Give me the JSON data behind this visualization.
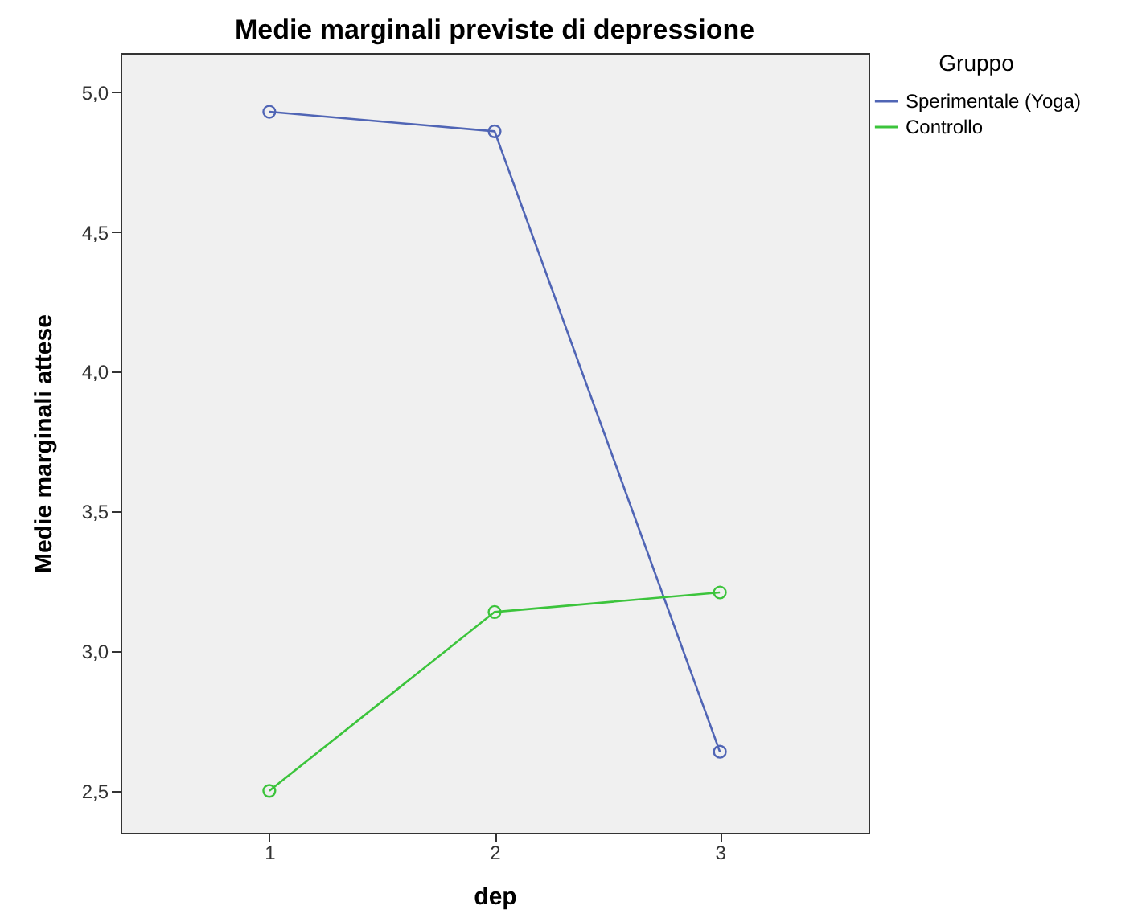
{
  "chart_data": {
    "type": "line",
    "title": "Medie marginali previste di depressione",
    "xlabel": "dep",
    "ylabel": "Medie marginali attese",
    "legend_title": "Gruppo",
    "categories": [
      "1",
      "2",
      "3"
    ],
    "series": [
      {
        "name": "Sperimentale (Yoga)",
        "color": "#5065b5",
        "values": [
          4.93,
          4.86,
          2.64
        ]
      },
      {
        "name": "Controllo",
        "color": "#3cc43c",
        "values": [
          2.5,
          3.14,
          3.21
        ]
      }
    ],
    "ylim": [
      2.35,
      5.14
    ],
    "yticks": [
      {
        "value": 2.5,
        "label": "2,5"
      },
      {
        "value": 3.0,
        "label": "3,0"
      },
      {
        "value": 3.5,
        "label": "3,5"
      },
      {
        "value": 4.0,
        "label": "4,0"
      },
      {
        "value": 4.5,
        "label": "4,5"
      },
      {
        "value": 5.0,
        "label": "5,0"
      }
    ],
    "grid": false,
    "legend": "right",
    "marker": "circle",
    "line_style": "solid"
  }
}
